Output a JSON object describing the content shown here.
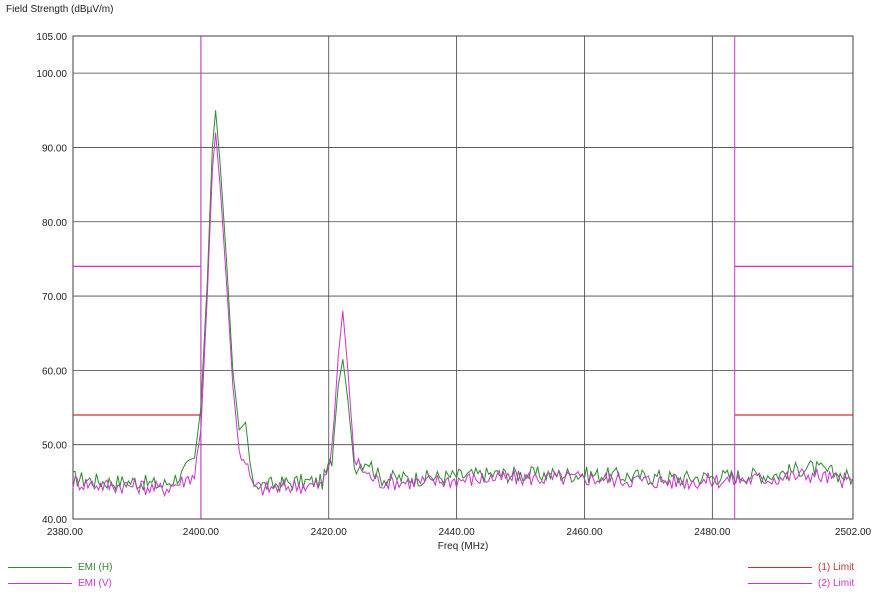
{
  "chart_data": {
    "type": "line",
    "ylabel": "Field Strength (dBµV/m)",
    "xlabel": "Freq (MHz)",
    "xlim": [
      2380,
      2502
    ],
    "ylim": [
      40,
      105
    ],
    "x_ticks": [
      "2380.00",
      "2400.00",
      "2420.00",
      "2440.00",
      "2460.00",
      "2480.00",
      "2502.00"
    ],
    "x_tick_values": [
      2380,
      2400,
      2420,
      2440,
      2460,
      2480,
      2502
    ],
    "y_ticks": [
      "40.00",
      "50.00",
      "60.00",
      "70.00",
      "80.00",
      "90.00",
      "100.00",
      "105.00"
    ],
    "y_tick_values": [
      40,
      50,
      60,
      70,
      80,
      90,
      100,
      105
    ],
    "grid": true,
    "band_markers": [
      2400,
      2483.5
    ],
    "series": [
      {
        "name": "EMI (H)",
        "color": "#2e8b2e",
        "x": [
          2380,
          2385,
          2390,
          2394,
          2397,
          2399,
          2400,
          2401,
          2401.8,
          2402.3,
          2403,
          2404,
          2405,
          2406,
          2407,
          2408,
          2410,
          2415,
          2419,
          2420.5,
          2421.5,
          2422.2,
          2423,
          2424,
          2426,
          2428,
          2435,
          2445,
          2460,
          2475,
          2490,
          2495,
          2502
        ],
        "y": [
          45.5,
          45,
          45,
          44.5,
          46,
          48,
          55,
          72,
          90,
          95,
          88,
          75,
          60,
          52,
          53,
          45,
          44.5,
          45,
          45,
          48,
          58,
          61.5,
          56,
          47,
          48,
          45.5,
          45.5,
          46,
          46,
          45.5,
          46,
          47,
          45.5
        ]
      },
      {
        "name": "EMI (V)",
        "color": "#cc33cc",
        "x": [
          2380,
          2385,
          2390,
          2394,
          2397,
          2399,
          2400,
          2401,
          2401.8,
          2402.3,
          2403,
          2404,
          2405,
          2406,
          2407,
          2408,
          2410,
          2415,
          2419,
          2420.5,
          2421.5,
          2422.2,
          2423,
          2424,
          2426,
          2428,
          2435,
          2445,
          2460,
          2475,
          2490,
          2495,
          2502
        ],
        "y": [
          45,
          44.5,
          44.5,
          44,
          45,
          46,
          52,
          70,
          87,
          92,
          85,
          72,
          58,
          49,
          48,
          44.5,
          44,
          44.5,
          44.5,
          49,
          62,
          68,
          60,
          48,
          46,
          45,
          45,
          45.5,
          45.5,
          45,
          45.5,
          46,
          45
        ]
      }
    ],
    "limits": [
      {
        "name": "(1) Limit",
        "color": "#cc3333",
        "segments": [
          {
            "x": [
              2380,
              2400
            ],
            "y": 54
          },
          {
            "x": [
              2483.5,
              2502
            ],
            "y": 54
          }
        ]
      },
      {
        "name": "(2) Limit",
        "color": "#cc33cc",
        "segments": [
          {
            "x": [
              2380,
              2400
            ],
            "y": 74
          },
          {
            "x": [
              2483.5,
              2502
            ],
            "y": 74
          }
        ]
      }
    ]
  },
  "legend": {
    "left": [
      {
        "label": "EMI (H)",
        "color": "#2e8b2e"
      },
      {
        "label": "EMI (V)",
        "color": "#cc33cc"
      }
    ],
    "right": [
      {
        "label": "(1) Limit",
        "color": "#cc3333"
      },
      {
        "label": "(2) Limit",
        "color": "#cc33cc"
      }
    ]
  }
}
